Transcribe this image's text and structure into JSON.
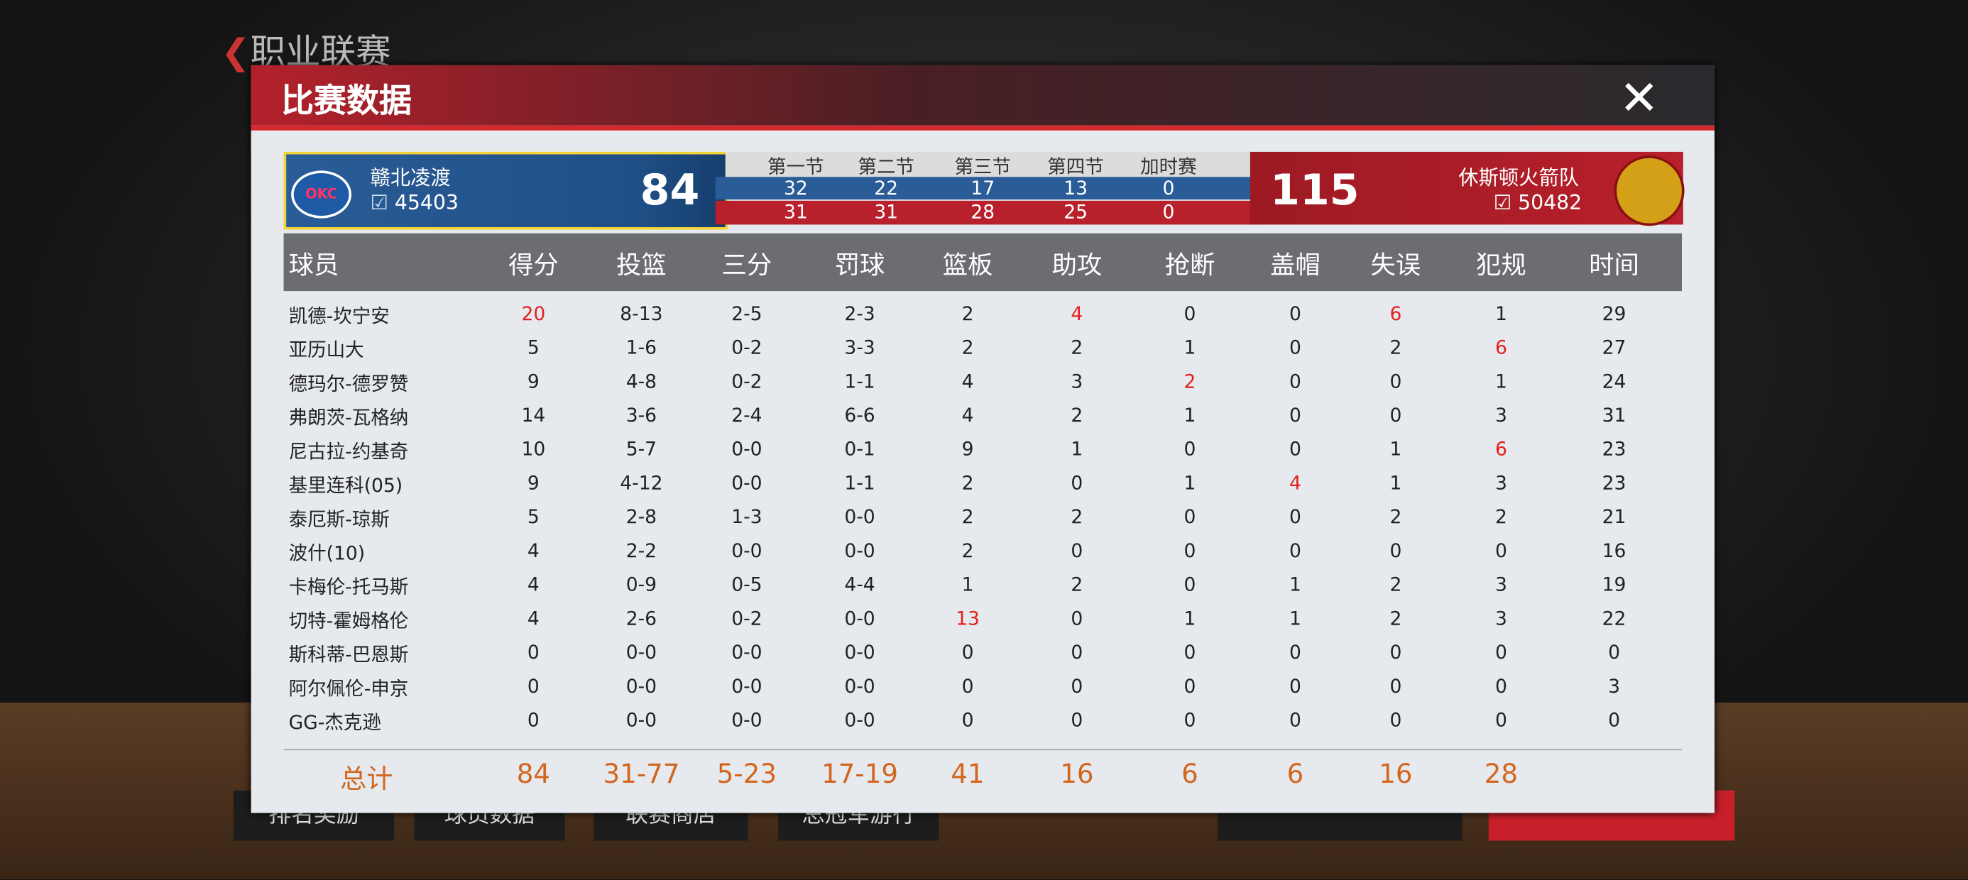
{
  "background": {
    "title": "职业联赛",
    "buttons": [
      "排名奖励",
      "球员数据",
      "联赛商店",
      "总冠军游行"
    ]
  },
  "dialog": {
    "title": "比赛数据"
  },
  "home": {
    "name": "赣北凌渡",
    "rating": "45403",
    "score": "84"
  },
  "away": {
    "name": "休斯顿火箭队",
    "rating": "50482",
    "score": "115"
  },
  "periods": {
    "labels": [
      "第一节",
      "第二节",
      "第三节",
      "第四节",
      "加时赛"
    ],
    "home": [
      "32",
      "22",
      "17",
      "13",
      "0"
    ],
    "away": [
      "31",
      "31",
      "28",
      "25",
      "0"
    ]
  },
  "table": {
    "headers": [
      "球员",
      "得分",
      "投篮",
      "三分",
      "罚球",
      "篮板",
      "助攻",
      "抢断",
      "盖帽",
      "失误",
      "犯规",
      "时间"
    ],
    "rows": [
      [
        "凯德-坎宁安",
        "20",
        "8-13",
        "2-5",
        "2-3",
        "2",
        "4",
        "0",
        "0",
        "6",
        "1",
        "29"
      ],
      [
        "亚历山大",
        "5",
        "1-6",
        "0-2",
        "3-3",
        "2",
        "2",
        "1",
        "0",
        "2",
        "6",
        "27"
      ],
      [
        "德玛尔-德罗赞",
        "9",
        "4-8",
        "0-2",
        "1-1",
        "4",
        "3",
        "2",
        "0",
        "0",
        "1",
        "24"
      ],
      [
        "弗朗茨-瓦格纳",
        "14",
        "3-6",
        "2-4",
        "6-6",
        "4",
        "2",
        "1",
        "0",
        "0",
        "3",
        "31"
      ],
      [
        "尼古拉-约基奇",
        "10",
        "5-7",
        "0-0",
        "0-1",
        "9",
        "1",
        "0",
        "0",
        "1",
        "6",
        "23"
      ],
      [
        "基里连科(05)",
        "9",
        "4-12",
        "0-0",
        "1-1",
        "2",
        "0",
        "1",
        "4",
        "1",
        "3",
        "23"
      ],
      [
        "泰厄斯-琼斯",
        "5",
        "2-8",
        "1-3",
        "0-0",
        "2",
        "2",
        "0",
        "0",
        "2",
        "2",
        "21"
      ],
      [
        "波什(10)",
        "4",
        "2-2",
        "0-0",
        "0-0",
        "2",
        "0",
        "0",
        "0",
        "0",
        "0",
        "16"
      ],
      [
        "卡梅伦-托马斯",
        "4",
        "0-9",
        "0-5",
        "4-4",
        "1",
        "2",
        "0",
        "1",
        "2",
        "3",
        "19"
      ],
      [
        "切特-霍姆格伦",
        "4",
        "2-6",
        "0-2",
        "0-0",
        "13",
        "0",
        "1",
        "1",
        "2",
        "3",
        "22"
      ],
      [
        "斯科蒂-巴恩斯",
        "0",
        "0-0",
        "0-0",
        "0-0",
        "0",
        "0",
        "0",
        "0",
        "0",
        "0",
        "0"
      ],
      [
        "阿尔佩伦-申京",
        "0",
        "0-0",
        "0-0",
        "0-0",
        "0",
        "0",
        "0",
        "0",
        "0",
        "0",
        "3"
      ],
      [
        "GG-杰克逊",
        "0",
        "0-0",
        "0-0",
        "0-0",
        "0",
        "0",
        "0",
        "0",
        "0",
        "0",
        "0"
      ]
    ],
    "totals": [
      "总计",
      "84",
      "31-77",
      "5-23",
      "17-19",
      "41",
      "16",
      "6",
      "6",
      "16",
      "28"
    ],
    "highlight": {
      "color": "#e3211c",
      "cells": [
        [
          0,
          1
        ],
        [
          0,
          6
        ],
        [
          0,
          9
        ],
        [
          1,
          10
        ],
        [
          2,
          7
        ],
        [
          4,
          10
        ],
        [
          5,
          8
        ],
        [
          9,
          5
        ]
      ]
    }
  }
}
